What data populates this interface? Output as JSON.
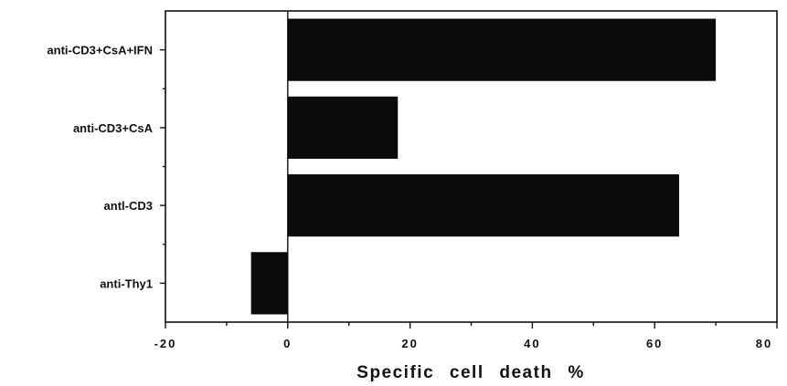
{
  "chart_data": {
    "type": "bar",
    "orientation": "horizontal",
    "categories": [
      "anti-CD3+CsA+IFN",
      "anti-CD3+CsA",
      "antl-CD3",
      "anti-Thy1"
    ],
    "values": [
      70,
      18,
      64,
      -6
    ],
    "title": "",
    "xlabel": "Specific cell death %",
    "ylabel": "",
    "xlim": [
      -20,
      80
    ],
    "xticks": [
      -20,
      0,
      20,
      40,
      60,
      80
    ],
    "xtick_labels": [
      "-20",
      "0",
      "20",
      "40",
      "60",
      "80"
    ],
    "grid": false,
    "zero_line": true,
    "bar_color": "#0b0b0b"
  }
}
